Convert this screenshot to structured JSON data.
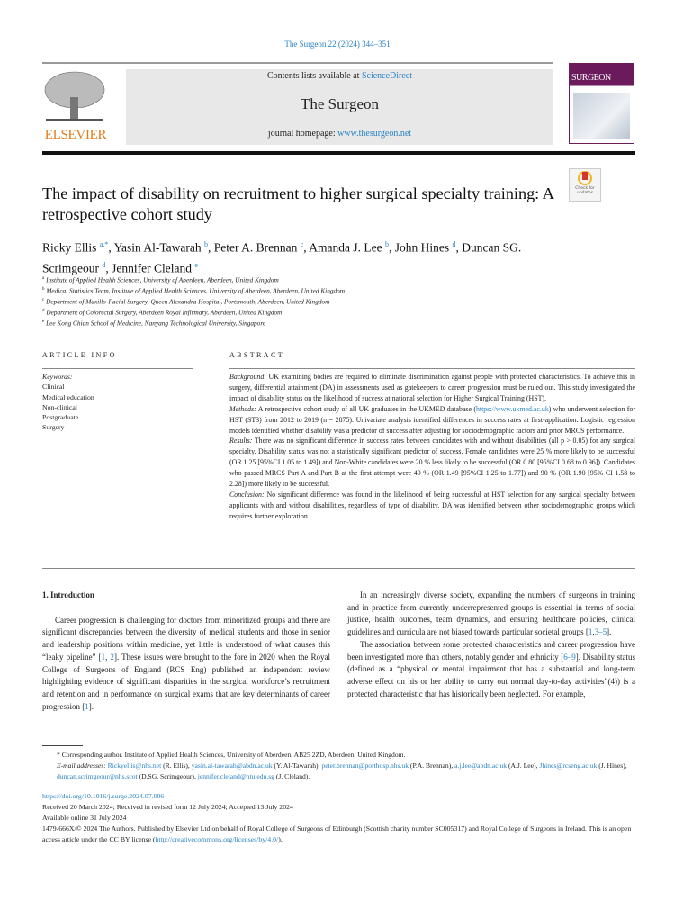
{
  "header": {
    "journal_ref": "The Surgeon 22 (2024) 344–351",
    "publisher_logo_text": "ELSEVIER",
    "contents_prefix": "Contents lists available at ",
    "contents_link": "ScienceDirect",
    "journal_title": "The Surgeon",
    "homepage_prefix": "journal homepage: ",
    "homepage_link": "www.thesurgeon.net",
    "cover_title": "SURGEON",
    "check_updates": "Check for updates"
  },
  "article": {
    "title": "The impact of disability on recruitment to higher surgical specialty training: A retrospective cohort study",
    "authors": [
      {
        "name": "Ricky Ellis",
        "sup": "a,*",
        "sep": ", "
      },
      {
        "name": "Yasin Al-Tawarah",
        "sup": "b",
        "sep": ", "
      },
      {
        "name": "Peter A. Brennan",
        "sup": "c",
        "sep": ", "
      },
      {
        "name": "Amanda J. Lee",
        "sup": "b",
        "sep": ", "
      },
      {
        "name": "John Hines",
        "sup": "d",
        "sep": ", "
      },
      {
        "name": "Duncan SG. Scrimgeour",
        "sup": "d",
        "sep": ", "
      },
      {
        "name": "Jennifer Cleland",
        "sup": "e",
        "sep": ""
      }
    ],
    "affiliations": [
      {
        "key": "a",
        "text": "Institute of Applied Health Sciences, University of Aberdeen, Aberdeen, United Kingdom"
      },
      {
        "key": "b",
        "text": "Medical Statistics Team, Institute of Applied Health Sciences, University of Aberdeen, Aberdeen, United Kingdom"
      },
      {
        "key": "c",
        "text": "Department of Maxillo-Facial Surgery, Queen Alexandra Hospital, Portsmouth, Aberdeen, United Kingdom"
      },
      {
        "key": "d",
        "text": "Department of Colorectal Surgery, Aberdeen Royal Infirmary, Aberdeen, United Kingdom"
      },
      {
        "key": "e",
        "text": "Lee Kong Chian School of Medicine, Nanyang Technological University, Singapore"
      }
    ]
  },
  "article_info": {
    "heading": "ARTICLE INFO",
    "keywords_label": "Keywords:",
    "keywords": [
      "Clinical",
      "Medical education",
      "Non-clinical",
      "Postgraduate",
      "Surgery"
    ]
  },
  "abstract": {
    "heading": "ABSTRACT",
    "sections": [
      {
        "label": "Background:",
        "parts": [
          {
            "t": " UK examining bodies are required to eliminate discrimination against people with protected characteristics. To achieve this in surgery, differential attainment (DA) in assessments used as gatekeepers to career progression must be ruled out. This study investigated the impact of disability status on the likelihood of success at national selection for Higher Surgical Training (HST)."
          }
        ]
      },
      {
        "label": "Methods:",
        "parts": [
          {
            "t": " A retrospective cohort study of all UK graduates in the UKMED database ("
          },
          {
            "t": "https://www.ukmed.ac.uk",
            "link": true
          },
          {
            "t": ") who underwent selection for HST (ST3) from 2012 to 2019 (n = 2875). Univariate analysis identified differences in success rates at first-application. Logistic regression models identified whether disability was a predictor of success after adjusting for sociodemographic factors and prior MRCS performance."
          }
        ]
      },
      {
        "label": "Results:",
        "parts": [
          {
            "t": " There was no significant difference in success rates between candidates with and without disabilities (all p > 0.05) for any surgical specialty. Disability status was not a statistically significant predictor of success. Female candidates were 25 % more likely to be successful (OR 1.25 [95%CI 1.05 to 1.49]) and Non-White candidates were 20 % less likely to be successful (OR 0.80 [95%CI 0.68 to 0.96]). Candidates who passed MRCS Part A and Part B at the first attempt were 49 % (OR 1.49 [95%CI 1.25 to 1.77]) and 90 % (OR 1.90 [95% CI 1.58 to 2.28]) more likely to be successful."
          }
        ]
      },
      {
        "label": "Conclusion:",
        "parts": [
          {
            "t": " No significant difference was found in the likelihood of being successful at HST selection for any surgical specialty between applicants with and without disabilities, regardless of type of disability. DA was identified between other sociodemographic groups which requires further exploration."
          }
        ]
      }
    ]
  },
  "body": {
    "intro_heading": "1.  Introduction",
    "left_paragraphs": [
      [
        {
          "t": "Career progression is challenging for doctors from minoritized groups and there are significant discrepancies between the diversity of medical students and those in senior and leadership positions within medicine, yet little is understood of what causes this “leaky pipeline” ["
        },
        {
          "t": "1",
          "link": true
        },
        {
          "t": ", "
        },
        {
          "t": "2",
          "link": true
        },
        {
          "t": "]. These issues were brought to the fore in 2020 when the Royal College of Surgeons of England (RCS Eng) published an independent review highlighting evidence of significant disparities in the surgical workforce’s recruitment and retention and in performance on surgical exams that are key determinants of career progression ["
        },
        {
          "t": "1",
          "link": true
        },
        {
          "t": "]."
        }
      ]
    ],
    "right_paragraphs": [
      [
        {
          "t": "In an increasingly diverse society, expanding the numbers of surgeons in training and in practice from currently underrepresented groups is essential in terms of social justice, health outcomes, team dynamics, and ensuring healthcare policies, clinical guidelines and curricula are not biased towards particular societal groups ["
        },
        {
          "t": "1",
          "link": true
        },
        {
          "t": ","
        },
        {
          "t": "3–5",
          "link": true
        },
        {
          "t": "]."
        }
      ],
      [
        {
          "t": "The association between some protected characteristics and career progression have been investigated more than others, notably gender and ethnicity ["
        },
        {
          "t": "6–9",
          "link": true
        },
        {
          "t": "]. Disability status (defined as a “physical or mental impairment that has a substantial and long-term adverse effect on his or her ability to carry out normal day-to-day activities”(4)) is a protected characteristic that has historically been neglected. For example,"
        }
      ]
    ]
  },
  "footnotes": {
    "corresponding": "* Corresponding author. Institute of Applied Health Sciences, University of Aberdeen, AB25 2ZD, Aberdeen, United Kingdom.",
    "emails": [
      {
        "t": "E-mail addresses: ",
        "italic": true
      },
      {
        "t": "Rickyellis@nhs.net",
        "link": true
      },
      {
        "t": " (R. Ellis), "
      },
      {
        "t": "yasin.al-tawarah@abdn.ac.uk",
        "link": true
      },
      {
        "t": " (Y. Al-Tawarah), "
      },
      {
        "t": "peter.brennan@porthosp.nhs.uk",
        "link": true
      },
      {
        "t": " (P.A. Brennan), "
      },
      {
        "t": "a.j.lee@abdn.ac.uk",
        "link": true
      },
      {
        "t": " (A.J. Lee), "
      },
      {
        "t": "Jhines@rcseng.ac.uk",
        "link": true
      },
      {
        "t": " (J. Hines), "
      },
      {
        "t": "duncan.scrimgeour@nhs.scot",
        "link": true
      },
      {
        "t": " (D.SG. Scrimgeour), "
      },
      {
        "t": "jennifer.cleland@ntu.edu.sg",
        "link": true
      },
      {
        "t": " (J. Cleland)."
      }
    ]
  },
  "pub_info": {
    "doi": "https://doi.org/10.1016/j.surge.2024.07.006",
    "dates": "Received 20 March 2024; Received in revised form 12 July 2024; Accepted 13 July 2024",
    "online": "Available online 31 July 2024",
    "license": [
      {
        "t": "1479-666X/© 2024 The Authors.  Published by Elsevier Ltd on behalf of Royal College of Surgeons of Edinburgh (Scottish charity number SC005317) and Royal College of Surgeons in Ireland.  This is an open access article under the CC BY license ("
      },
      {
        "t": "http://creativecommons.org/licenses/by/4.0/",
        "link": true
      },
      {
        "t": ")."
      }
    ]
  },
  "colors": {
    "link": "#2a82c4",
    "elsevier": "#e07b1a",
    "cover": "#6b1b5c"
  }
}
